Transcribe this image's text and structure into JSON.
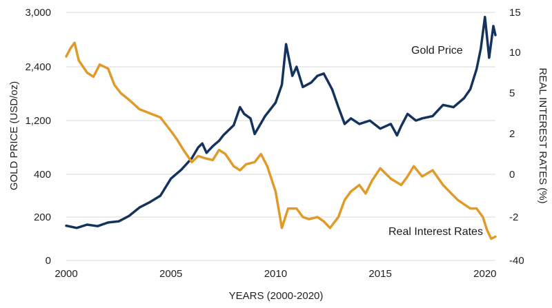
{
  "chart_data": {
    "type": "line",
    "title": "",
    "xlabel": "YEARS (2000-2020)",
    "ylabel_left": "GOLD PRICE (USD/oz)",
    "ylabel_right": "REAL INTEREST RATES (%)",
    "xlim": [
      2000,
      2020.5
    ],
    "x_ticks": [
      "2000",
      "2005",
      "2010",
      "2015",
      "2020"
    ],
    "y_left_ticks": [
      "0",
      "200",
      "400",
      "1,200",
      "2,400",
      "3,000"
    ],
    "y_right_ticks": [
      "15",
      "10",
      "5",
      "2",
      "0",
      "-2",
      "-40"
    ],
    "grid": "horizontal",
    "colors": {
      "gold_price": "#14335c",
      "real_rates": "#e09a2a",
      "grid": "#d9d9d9"
    },
    "series": [
      {
        "name": "Gold Price",
        "axis": "left",
        "x": [
          2000.0,
          2000.5,
          2001.0,
          2001.5,
          2002.0,
          2002.5,
          2003.0,
          2003.5,
          2004.0,
          2004.5,
          2005.0,
          2005.5,
          2006.0,
          2006.3,
          2006.5,
          2006.7,
          2007.0,
          2007.3,
          2007.5,
          2008.0,
          2008.3,
          2008.5,
          2008.8,
          2009.0,
          2009.5,
          2010.0,
          2010.3,
          2010.5,
          2010.8,
          2011.0,
          2011.3,
          2011.7,
          2012.0,
          2012.3,
          2012.7,
          2013.0,
          2013.3,
          2013.6,
          2014.0,
          2014.5,
          2015.0,
          2015.5,
          2015.8,
          2016.0,
          2016.3,
          2016.7,
          2017.0,
          2017.5,
          2018.0,
          2018.5,
          2019.0,
          2019.3,
          2019.6,
          2019.8,
          2020.0,
          2020.2,
          2020.4,
          2020.5
        ],
        "values": [
          160,
          150,
          165,
          158,
          175,
          180,
          205,
          245,
          270,
          300,
          380,
          470,
          640,
          800,
          860,
          720,
          820,
          900,
          980,
          1130,
          1500,
          1350,
          1250,
          1000,
          1300,
          1600,
          2000,
          2650,
          2200,
          2400,
          1950,
          2050,
          2200,
          2250,
          1900,
          1500,
          1150,
          1250,
          1150,
          1200,
          1080,
          1150,
          980,
          1120,
          1350,
          1200,
          1250,
          1300,
          1550,
          1500,
          1700,
          1900,
          2350,
          2600,
          2950,
          2500,
          2850,
          2750
        ]
      },
      {
        "name": "Real Interest Rates",
        "axis": "right",
        "x": [
          2000.0,
          2000.2,
          2000.4,
          2000.6,
          2001.0,
          2001.3,
          2001.6,
          2002.0,
          2002.3,
          2002.6,
          2003.0,
          2003.5,
          2004.0,
          2004.5,
          2005.0,
          2005.3,
          2005.6,
          2006.0,
          2006.3,
          2006.6,
          2007.0,
          2007.3,
          2007.6,
          2008.0,
          2008.3,
          2008.6,
          2009.0,
          2009.3,
          2009.6,
          2010.0,
          2010.3,
          2010.6,
          2011.0,
          2011.3,
          2011.6,
          2012.0,
          2012.3,
          2012.6,
          2013.0,
          2013.3,
          2013.6,
          2014.0,
          2014.3,
          2014.6,
          2015.0,
          2015.5,
          2016.0,
          2016.3,
          2016.6,
          2017.0,
          2017.5,
          2018.0,
          2018.3,
          2018.7,
          2019.0,
          2019.3,
          2019.6,
          2019.9,
          2020.1,
          2020.3,
          2020.5
        ],
        "values": [
          9.5,
          10.5,
          11.2,
          9.0,
          7.5,
          7.0,
          8.5,
          8.0,
          6.0,
          5.0,
          4.5,
          3.8,
          3.5,
          3.2,
          2.2,
          1.7,
          1.2,
          0.6,
          0.9,
          0.8,
          0.7,
          1.2,
          1.0,
          0.4,
          0.2,
          0.5,
          0.6,
          1.0,
          0.4,
          -0.8,
          -2.5,
          -1.6,
          -1.6,
          -2.0,
          -2.1,
          -2.0,
          -2.2,
          -2.5,
          -2.0,
          -1.2,
          -0.8,
          -0.5,
          -0.9,
          -0.3,
          0.3,
          -0.2,
          -0.5,
          -0.1,
          0.4,
          -0.1,
          0.2,
          -0.5,
          -0.8,
          -1.2,
          -1.4,
          -1.6,
          -1.6,
          -2.0,
          -2.6,
          -3.0,
          -2.9
        ]
      }
    ],
    "annotations": [
      "Gold Price",
      "Real Interest Rates"
    ]
  }
}
